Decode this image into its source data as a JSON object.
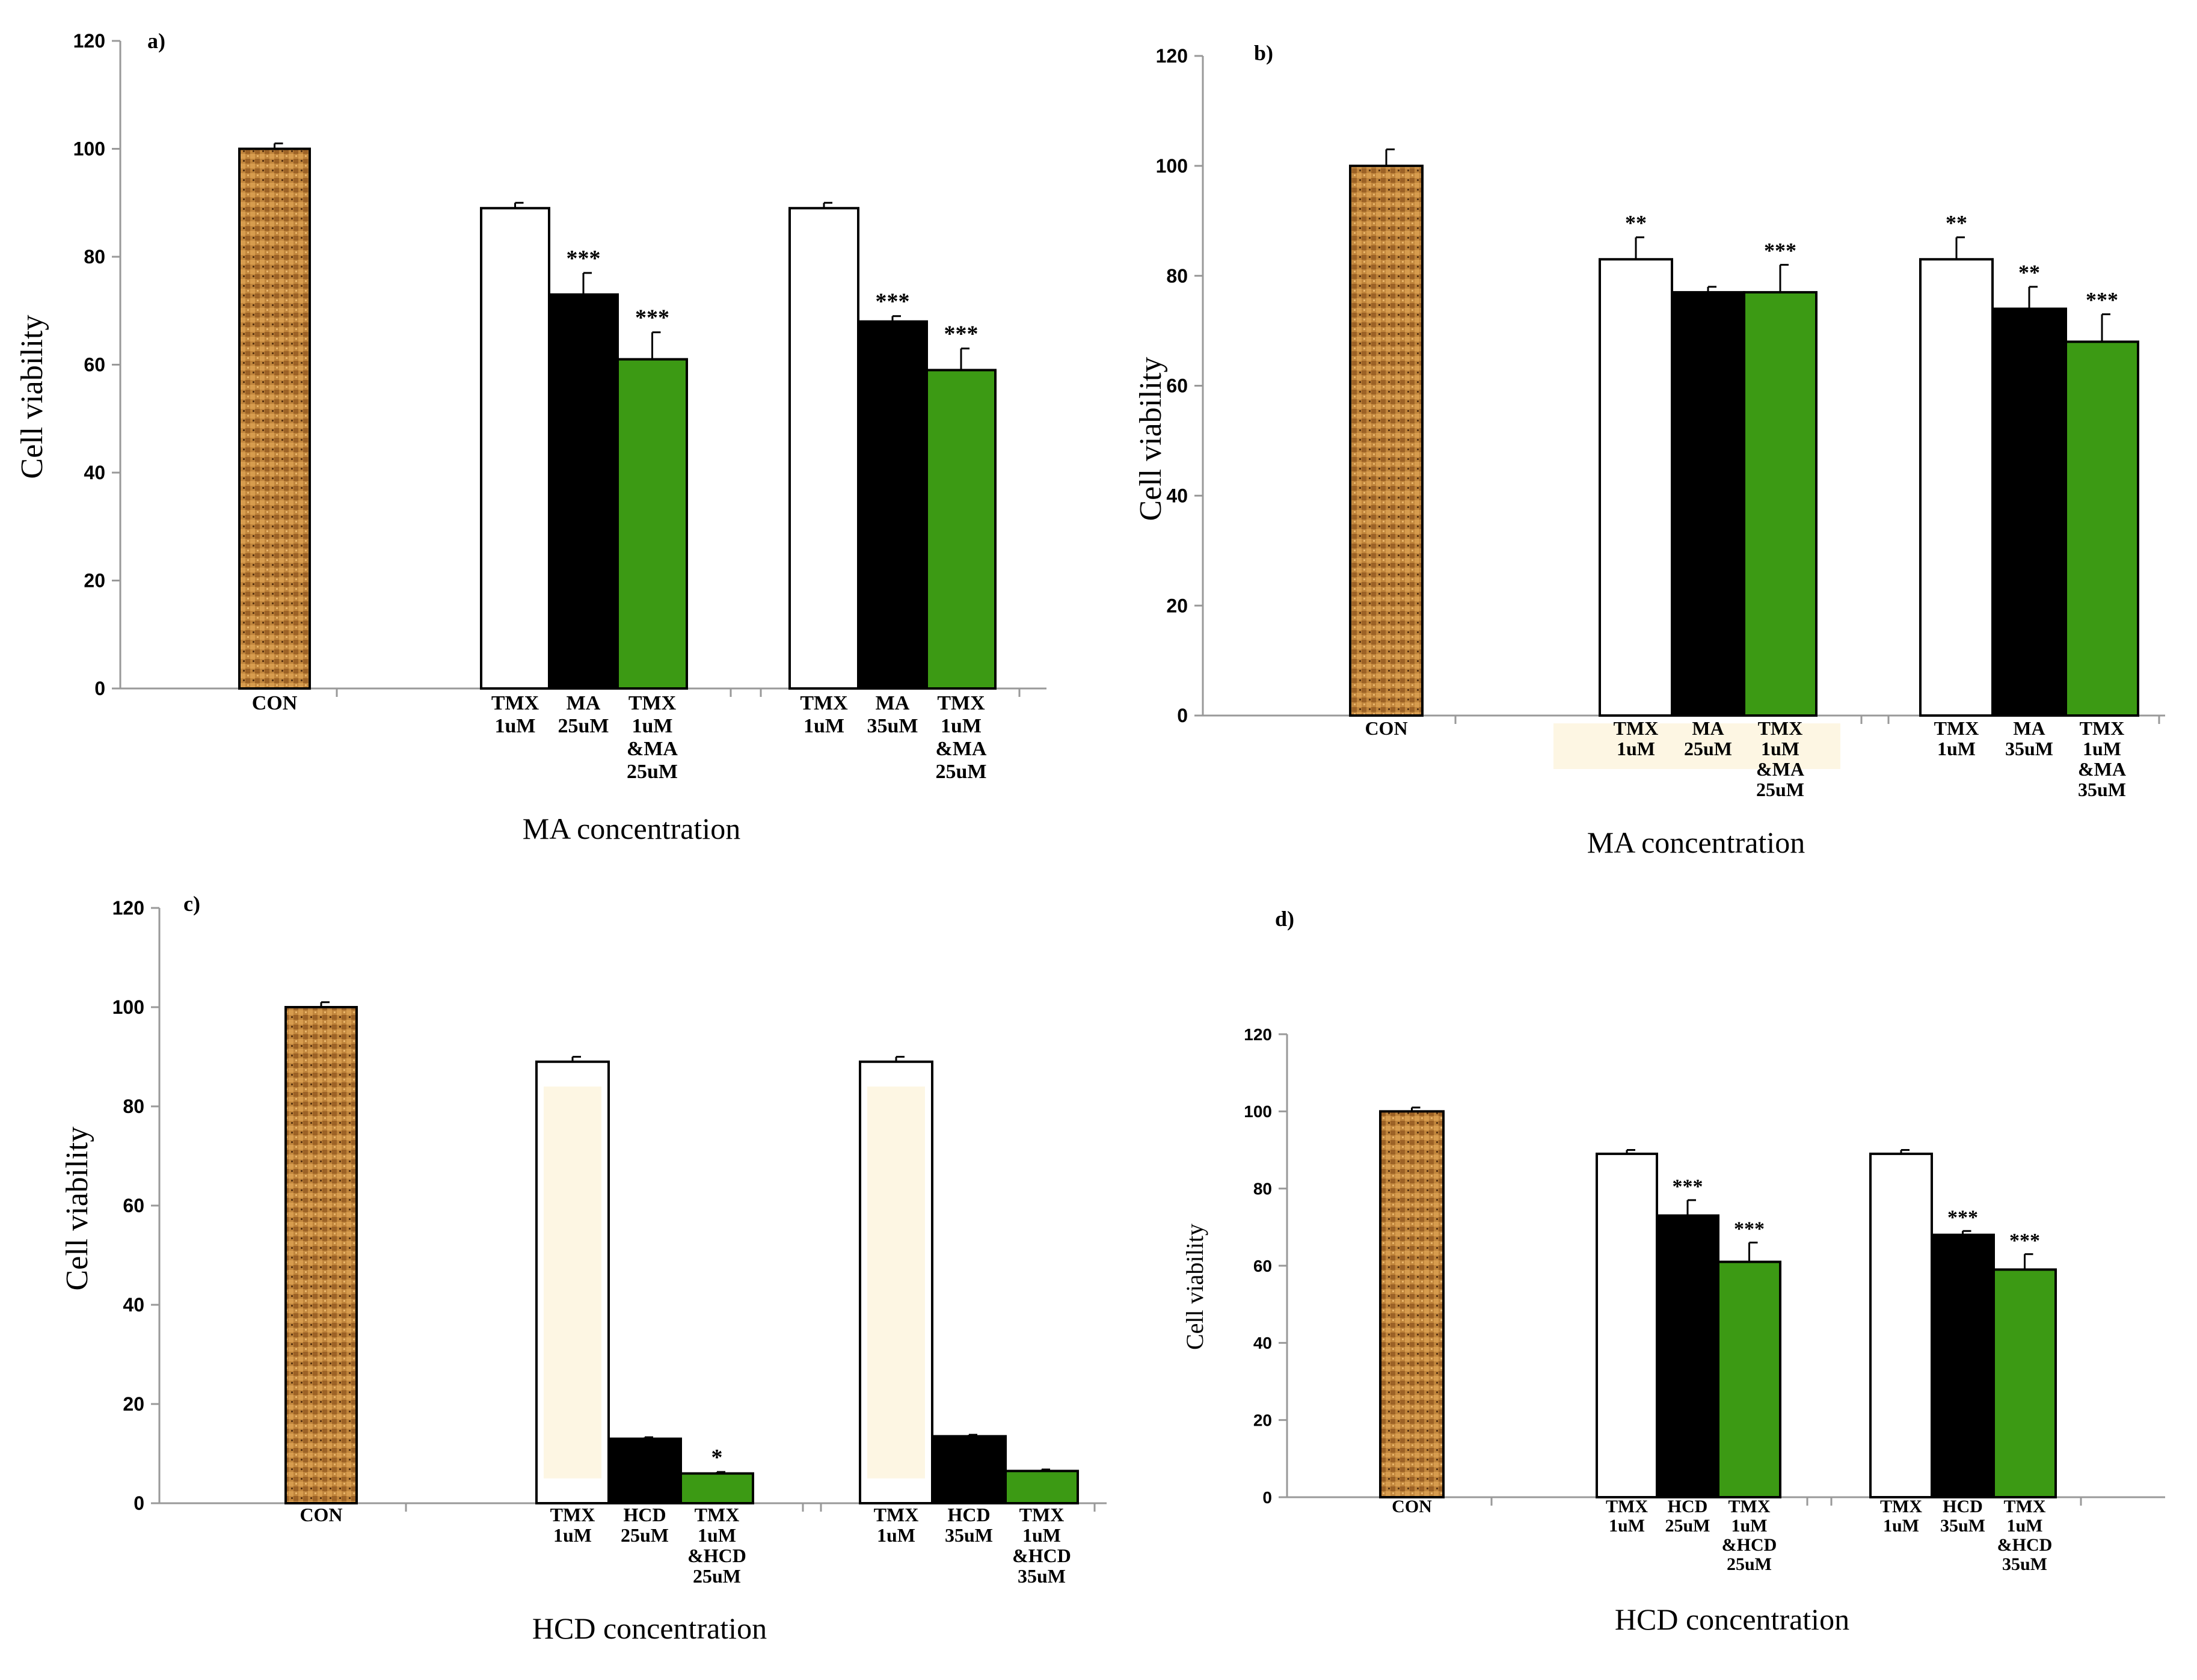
{
  "colors": {
    "control": "#c0853c",
    "white": "#ffffff",
    "black": "#000000",
    "green": "#3c9a14",
    "highlight": "#fdf6e3"
  },
  "chart_data": [
    {
      "type": "bar",
      "panel": "a)",
      "xlabel": "MA concentration",
      "ylabel": "Cell viability",
      "ylim": [
        0,
        120
      ],
      "yticks": [
        "0",
        "20",
        "40",
        "60",
        "80",
        "100",
        "120"
      ],
      "bars": [
        {
          "label": [
            "CON"
          ],
          "value": 100,
          "err": 1,
          "fill": "control",
          "sig": ""
        },
        {
          "label": [
            "TMX",
            "1uM"
          ],
          "value": 89,
          "err": 1,
          "fill": "white",
          "sig": ""
        },
        {
          "label": [
            "MA",
            "25uM"
          ],
          "value": 73,
          "err": 4,
          "fill": "black",
          "sig": "***"
        },
        {
          "label": [
            "TMX",
            "1uM",
            "&MA",
            "25uM"
          ],
          "value": 61,
          "err": 5,
          "fill": "green",
          "sig": "***"
        },
        {
          "label": [
            "TMX",
            "1uM"
          ],
          "value": 89,
          "err": 1,
          "fill": "white",
          "sig": ""
        },
        {
          "label": [
            "MA",
            "35uM"
          ],
          "value": 68,
          "err": 1,
          "fill": "black",
          "sig": "***"
        },
        {
          "label": [
            "TMX",
            "1uM",
            "&MA",
            "25uM"
          ],
          "value": 59,
          "err": 4,
          "fill": "green",
          "sig": "***"
        }
      ]
    },
    {
      "type": "bar",
      "panel": "b)",
      "xlabel": "MA concentration",
      "ylabel": "Cell viability",
      "ylim": [
        0,
        120
      ],
      "yticks": [
        "0",
        "20",
        "40",
        "60",
        "80",
        "100",
        "120"
      ],
      "bars": [
        {
          "label": [
            "CON"
          ],
          "value": 100,
          "err": 3,
          "fill": "control",
          "sig": ""
        },
        {
          "label": [
            "TMX",
            "1uM"
          ],
          "value": 83,
          "err": 4,
          "fill": "white",
          "sig": "**"
        },
        {
          "label": [
            "MA",
            "25uM"
          ],
          "value": 77,
          "err": 1,
          "fill": "black",
          "sig": ""
        },
        {
          "label": [
            "TMX",
            "1uM",
            "&MA",
            "25uM"
          ],
          "value": 77,
          "err": 5,
          "fill": "green",
          "sig": "***"
        },
        {
          "label": [
            "TMX",
            "1uM"
          ],
          "value": 83,
          "err": 4,
          "fill": "white",
          "sig": "**"
        },
        {
          "label": [
            "MA",
            "35uM"
          ],
          "value": 74,
          "err": 4,
          "fill": "black",
          "sig": "**"
        },
        {
          "label": [
            "TMX",
            "1uM",
            "&MA",
            "35uM"
          ],
          "value": 68,
          "err": 5,
          "fill": "green",
          "sig": "***"
        }
      ]
    },
    {
      "type": "bar",
      "panel": "c)",
      "xlabel": "HCD concentration",
      "ylabel": "Cell viability",
      "ylim": [
        0,
        120
      ],
      "yticks": [
        "0",
        "20",
        "40",
        "60",
        "80",
        "100",
        "120"
      ],
      "bars": [
        {
          "label": [
            "CON"
          ],
          "value": 100,
          "err": 1,
          "fill": "control",
          "sig": ""
        },
        {
          "label": [
            "TMX",
            "1uM"
          ],
          "value": 89,
          "err": 1,
          "fill": "white",
          "sig": ""
        },
        {
          "label": [
            "HCD",
            "25uM"
          ],
          "value": 13,
          "err": 0.3,
          "fill": "black",
          "sig": ""
        },
        {
          "label": [
            "TMX",
            "1uM",
            "&HCD",
            "25uM"
          ],
          "value": 6,
          "err": 0.3,
          "fill": "green",
          "sig": "*"
        },
        {
          "label": [
            "TMX",
            "1uM"
          ],
          "value": 89,
          "err": 1,
          "fill": "white",
          "sig": ""
        },
        {
          "label": [
            "HCD",
            "35uM"
          ],
          "value": 13.5,
          "err": 0.3,
          "fill": "black",
          "sig": ""
        },
        {
          "label": [
            "TMX",
            "1uM",
            "&HCD",
            "35uM"
          ],
          "value": 6.5,
          "err": 0.3,
          "fill": "green",
          "sig": ""
        }
      ]
    },
    {
      "type": "bar",
      "panel": "d)",
      "xlabel": "HCD concentration",
      "ylabel": "Cell viability",
      "ylim": [
        0,
        120
      ],
      "yticks": [
        "0",
        "20",
        "40",
        "60",
        "80",
        "100",
        "120"
      ],
      "bars": [
        {
          "label": [
            "CON"
          ],
          "value": 100,
          "err": 1,
          "fill": "control",
          "sig": ""
        },
        {
          "label": [
            "TMX",
            "1uM"
          ],
          "value": 89,
          "err": 1,
          "fill": "white",
          "sig": ""
        },
        {
          "label": [
            "HCD",
            "25uM"
          ],
          "value": 73,
          "err": 4,
          "fill": "black",
          "sig": "***"
        },
        {
          "label": [
            "TMX",
            "1uM",
            "&HCD",
            "25uM"
          ],
          "value": 61,
          "err": 5,
          "fill": "green",
          "sig": "***"
        },
        {
          "label": [
            "TMX",
            "1uM"
          ],
          "value": 89,
          "err": 1,
          "fill": "white",
          "sig": ""
        },
        {
          "label": [
            "HCD",
            "35uM"
          ],
          "value": 68,
          "err": 1,
          "fill": "black",
          "sig": "***"
        },
        {
          "label": [
            "TMX",
            "1uM",
            "&HCD",
            "35uM"
          ],
          "value": 59,
          "err": 4,
          "fill": "green",
          "sig": "***"
        }
      ]
    }
  ]
}
